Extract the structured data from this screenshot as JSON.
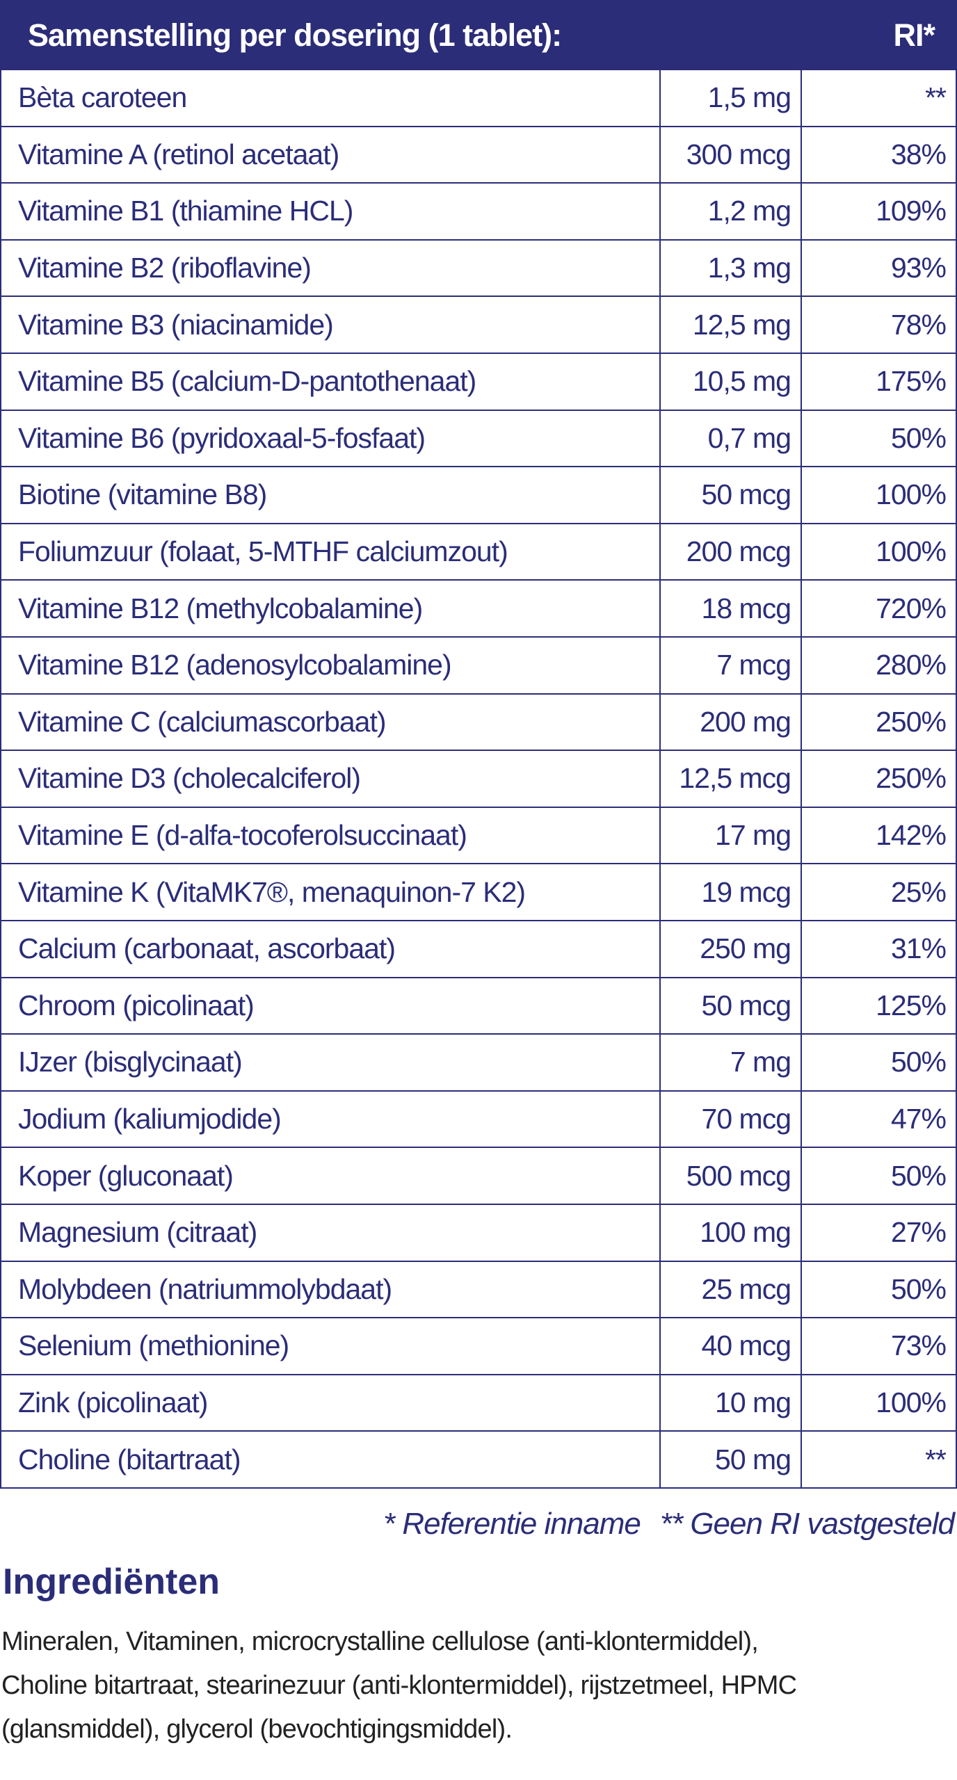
{
  "header": {
    "title": "Samenstelling per dosering (1 tablet):",
    "ri": "RI*"
  },
  "table": {
    "rows": [
      [
        "Bèta caroteen",
        "1,5 mg",
        "**"
      ],
      [
        "Vitamine A (retinol acetaat)",
        "300 mcg",
        "38%"
      ],
      [
        "Vitamine B1 (thiamine HCL)",
        "1,2 mg",
        "109%"
      ],
      [
        "Vitamine B2 (riboflavine)",
        "1,3 mg",
        "93%"
      ],
      [
        "Vitamine B3 (niacinamide)",
        "12,5 mg",
        "78%"
      ],
      [
        "Vitamine B5 (calcium-D-pantothenaat)",
        "10,5 mg",
        "175%"
      ],
      [
        "Vitamine B6 (pyridoxaal-5-fosfaat)",
        "0,7 mg",
        "50%"
      ],
      [
        "Biotine (vitamine B8)",
        "50 mcg",
        "100%"
      ],
      [
        "Foliumzuur (folaat, 5-MTHF calciumzout)",
        "200 mcg",
        "100%"
      ],
      [
        "Vitamine B12 (methylcobalamine)",
        "18 mcg",
        "720%"
      ],
      [
        "Vitamine B12 (adenosylcobalamine)",
        "7 mcg",
        "280%"
      ],
      [
        "Vitamine C (calciumascorbaat)",
        "200 mg",
        "250%"
      ],
      [
        "Vitamine D3 (cholecalciferol)",
        "12,5 mcg",
        "250%"
      ],
      [
        "Vitamine E (d-alfa-tocoferolsuccinaat)",
        "17 mg",
        "142%"
      ],
      [
        "Vitamine K (VitaMK7®, menaquinon-7 K2)",
        "19 mcg",
        "25%"
      ],
      [
        "Calcium (carbonaat, ascorbaat)",
        "250 mg",
        "31%"
      ],
      [
        "Chroom (picolinaat)",
        "50 mcg",
        "125%"
      ],
      [
        "IJzer (bisglycinaat)",
        "7 mg",
        "50%"
      ],
      [
        "Jodium (kaliumjodide)",
        "70 mcg",
        "47%"
      ],
      [
        "Koper (gluconaat)",
        "500 mcg",
        "50%"
      ],
      [
        "Magnesium (citraat)",
        "100 mg",
        "27%"
      ],
      [
        "Molybdeen (natriummolybdaat)",
        "25 mcg",
        "50%"
      ],
      [
        "Selenium (methionine)",
        "40 mcg",
        "73%"
      ],
      [
        "Zink (picolinaat)",
        "10 mg",
        "100%"
      ],
      [
        "Choline (bitartraat)",
        "50 mg",
        "**"
      ]
    ]
  },
  "footnotes": [
    "* Referentie inname",
    "** Geen RI vastgesteld"
  ],
  "ingredients": {
    "title": "Ingrediënten",
    "lines": [
      "Mineralen, Vitaminen, microcrystalline cellulose (anti-klontermiddel),",
      "Choline bitartraat, stearinezuur (anti-klontermiddel), rijstzetmeel, HPMC",
      "(glansmiddel), glycerol (bevochtigingsmiddel)."
    ]
  }
}
